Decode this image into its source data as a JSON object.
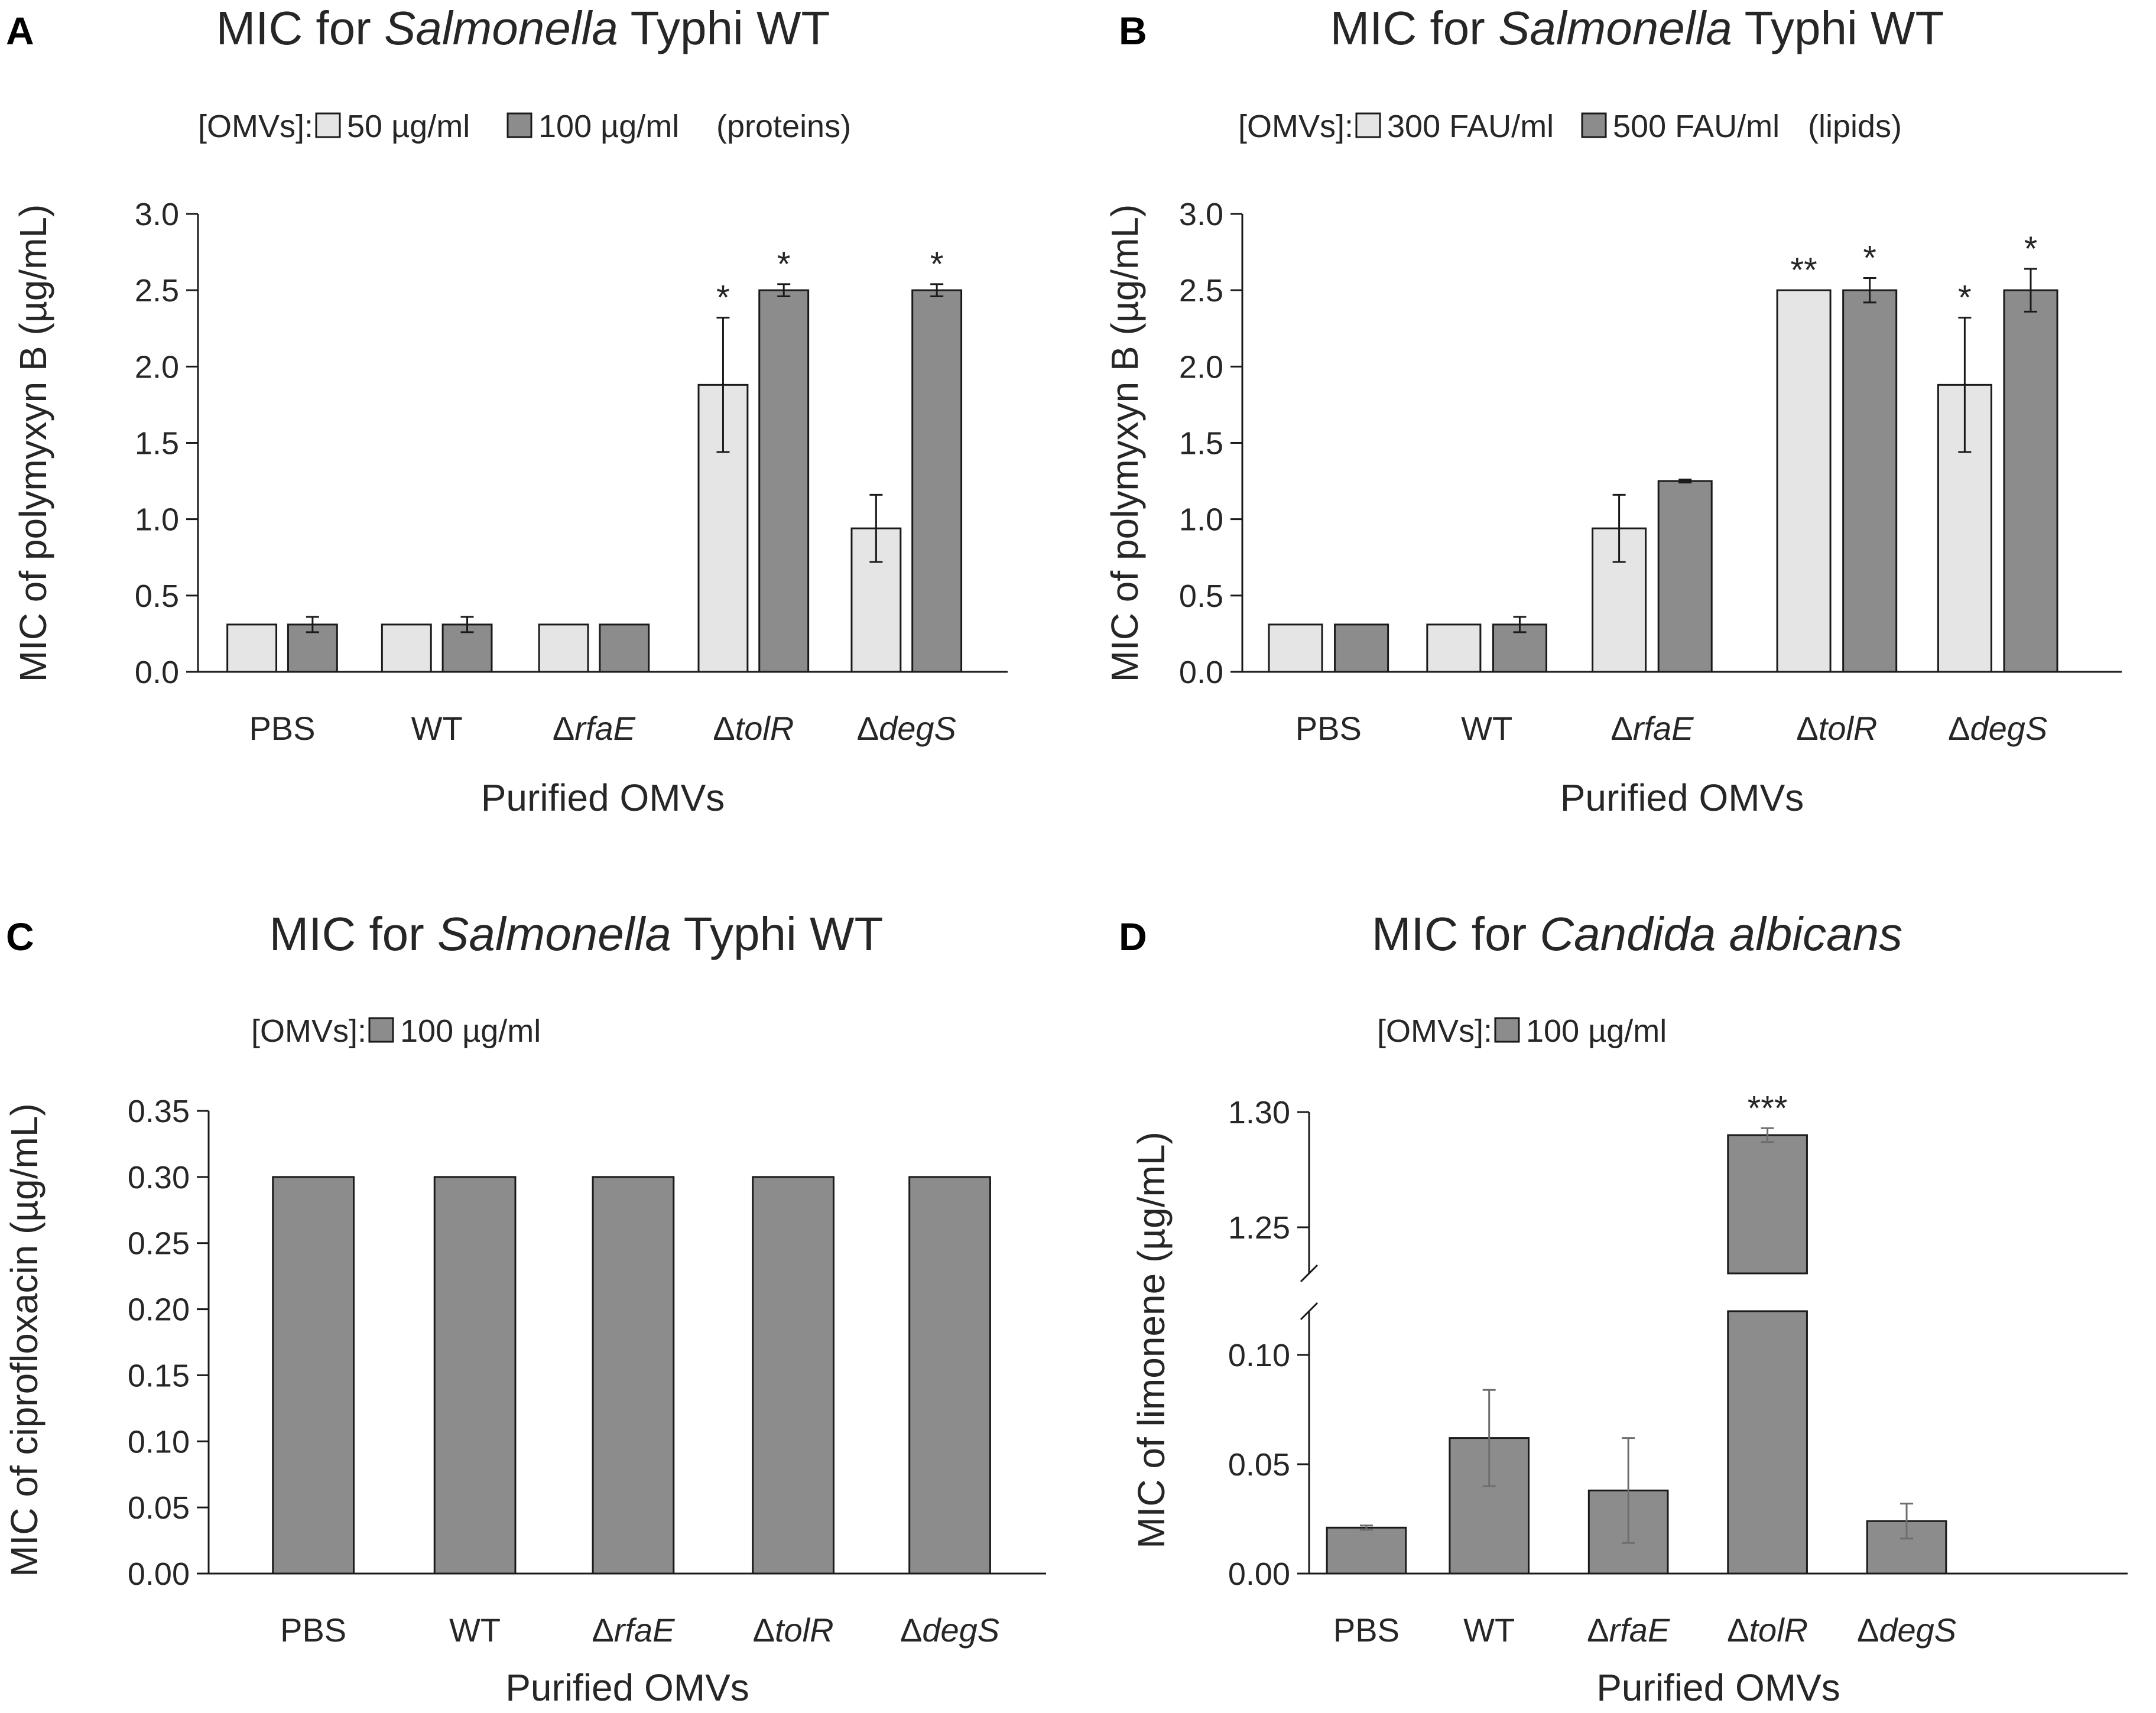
{
  "colors": {
    "light": "#e5e5e5",
    "dark": "#8c8c8c",
    "stroke": "#1a1a1a",
    "axis": "#1a1a1a",
    "err_gray": "#6e6e6e"
  },
  "chart_data": [
    {
      "id": "A",
      "panel_label": "A",
      "type": "bar",
      "title_parts": [
        {
          "t": "MIC for ",
          "i": false
        },
        {
          "t": "Salmonella",
          "i": true
        },
        {
          "t": " Typhi WT",
          "i": false
        }
      ],
      "legend_prefix": "[OMVs]:",
      "legend_suffix": "(proteins)",
      "ylabel": "MIC of polymyxyn B (µg/mL)",
      "xlabel": "Purified OMVs",
      "ylim": [
        0,
        3.0
      ],
      "yticks": [
        "0.0",
        "0.5",
        "1.0",
        "1.5",
        "2.0",
        "2.5",
        "3.0"
      ],
      "categories": [
        {
          "parts": [
            {
              "t": "PBS",
              "i": false
            }
          ]
        },
        {
          "parts": [
            {
              "t": "WT",
              "i": false
            }
          ]
        },
        {
          "parts": [
            {
              "t": "Δ",
              "i": false
            },
            {
              "t": "rfaE",
              "i": true
            }
          ]
        },
        {
          "parts": [
            {
              "t": "Δ",
              "i": false
            },
            {
              "t": "tolR",
              "i": true
            }
          ]
        },
        {
          "parts": [
            {
              "t": "Δ",
              "i": false
            },
            {
              "t": "degS",
              "i": true
            }
          ]
        }
      ],
      "series": [
        {
          "name": "50 µg/ml",
          "color": "light",
          "values": [
            0.31,
            0.31,
            0.31,
            1.88,
            0.94
          ],
          "errors": [
            0,
            0,
            0,
            0.44,
            0.22
          ],
          "stars": [
            "",
            "",
            "",
            "*",
            ""
          ]
        },
        {
          "name": "100 µg/ml",
          "color": "dark",
          "values": [
            0.31,
            0.31,
            0.31,
            2.5,
            2.5
          ],
          "errors": [
            0.05,
            0.05,
            0,
            0.04,
            0.04
          ],
          "stars": [
            "",
            "",
            "",
            "*",
            "*"
          ]
        }
      ]
    },
    {
      "id": "B",
      "panel_label": "B",
      "type": "bar",
      "title_parts": [
        {
          "t": "MIC for ",
          "i": false
        },
        {
          "t": "Salmonella",
          "i": true
        },
        {
          "t": " Typhi WT",
          "i": false
        }
      ],
      "legend_prefix": "[OMVs]:",
      "legend_suffix": "(lipids)",
      "ylabel": "MIC of polymyxyn B (µg/mL)",
      "xlabel": "Purified OMVs",
      "ylim": [
        0,
        3.0
      ],
      "yticks": [
        "0.0",
        "0.5",
        "1.0",
        "1.5",
        "2.0",
        "2.5",
        "3.0"
      ],
      "categories": [
        {
          "parts": [
            {
              "t": "PBS",
              "i": false
            }
          ]
        },
        {
          "parts": [
            {
              "t": "WT",
              "i": false
            }
          ]
        },
        {
          "parts": [
            {
              "t": "Δ",
              "i": false
            },
            {
              "t": "rfaE",
              "i": true
            }
          ]
        },
        {
          "parts": [
            {
              "t": "Δ",
              "i": false
            },
            {
              "t": "tolR",
              "i": true
            }
          ]
        },
        {
          "parts": [
            {
              "t": "Δ",
              "i": false
            },
            {
              "t": "degS",
              "i": true
            }
          ]
        }
      ],
      "series": [
        {
          "name": "300 FAU/ml",
          "color": "light",
          "values": [
            0.31,
            0.31,
            0.94,
            2.5,
            1.88
          ],
          "errors": [
            0,
            0,
            0.22,
            0,
            0.44
          ],
          "stars": [
            "",
            "",
            "",
            "**",
            "*"
          ]
        },
        {
          "name": "500 FAU/ml",
          "color": "dark",
          "values": [
            0.31,
            0.31,
            1.25,
            2.5,
            2.5
          ],
          "errors": [
            0,
            0.05,
            0.01,
            0.08,
            0.14
          ],
          "stars": [
            "",
            "",
            "",
            "*",
            "*"
          ]
        }
      ]
    },
    {
      "id": "C",
      "panel_label": "C",
      "type": "bar",
      "title_parts": [
        {
          "t": "MIC for ",
          "i": false
        },
        {
          "t": "Salmonella",
          "i": true
        },
        {
          "t": " Typhi WT",
          "i": false
        }
      ],
      "legend_prefix": "[OMVs]:",
      "legend_suffix": "",
      "ylabel": "MIC of ciprofloxacin (µg/mL)",
      "xlabel": "Purified OMVs",
      "ylim": [
        0,
        0.35
      ],
      "yticks": [
        "0.00",
        "0.05",
        "0.10",
        "0.15",
        "0.20",
        "0.25",
        "0.30",
        "0.35"
      ],
      "categories": [
        {
          "parts": [
            {
              "t": "PBS",
              "i": false
            }
          ]
        },
        {
          "parts": [
            {
              "t": "WT",
              "i": false
            }
          ]
        },
        {
          "parts": [
            {
              "t": "Δ",
              "i": false
            },
            {
              "t": "rfaE",
              "i": true
            }
          ]
        },
        {
          "parts": [
            {
              "t": "Δ",
              "i": false
            },
            {
              "t": "tolR",
              "i": true
            }
          ]
        },
        {
          "parts": [
            {
              "t": "Δ",
              "i": false
            },
            {
              "t": "degS",
              "i": true
            }
          ]
        }
      ],
      "series": [
        {
          "name": "100 µg/ml",
          "color": "dark",
          "values": [
            0.3,
            0.3,
            0.3,
            0.3,
            0.3
          ],
          "errors": [
            0,
            0,
            0,
            0,
            0
          ],
          "stars": [
            "",
            "",
            "",
            "",
            ""
          ]
        }
      ]
    },
    {
      "id": "D",
      "panel_label": "D",
      "type": "bar",
      "title_parts": [
        {
          "t": "MIC for ",
          "i": false
        },
        {
          "t": "Candida albicans",
          "i": true
        }
      ],
      "legend_prefix": "[OMVs]:",
      "legend_suffix": "",
      "ylabel": "MIC of limonene (µg/mL)",
      "xlabel": "Purified OMVs",
      "broken_axis": true,
      "ylim_lower": [
        0,
        0.12
      ],
      "ylim_upper": [
        1.23,
        1.3
      ],
      "yticks_lower": [
        "0.00",
        "0.05",
        "0.10"
      ],
      "yticks_upper": [
        "1.25",
        "1.30"
      ],
      "categories": [
        {
          "parts": [
            {
              "t": "PBS",
              "i": false
            }
          ]
        },
        {
          "parts": [
            {
              "t": "WT",
              "i": false
            }
          ]
        },
        {
          "parts": [
            {
              "t": "Δ",
              "i": false
            },
            {
              "t": "rfaE",
              "i": true
            }
          ]
        },
        {
          "parts": [
            {
              "t": "Δ",
              "i": false
            },
            {
              "t": "tolR",
              "i": true
            }
          ]
        },
        {
          "parts": [
            {
              "t": "Δ",
              "i": false
            },
            {
              "t": "degS",
              "i": true
            }
          ]
        }
      ],
      "series": [
        {
          "name": "100 µg/ml",
          "color": "dark",
          "values": [
            0.021,
            0.062,
            0.038,
            1.29,
            0.024
          ],
          "errors": [
            0.001,
            0.022,
            0.024,
            0.003,
            0.008
          ],
          "stars": [
            "",
            "",
            "",
            "***",
            ""
          ]
        }
      ]
    }
  ]
}
